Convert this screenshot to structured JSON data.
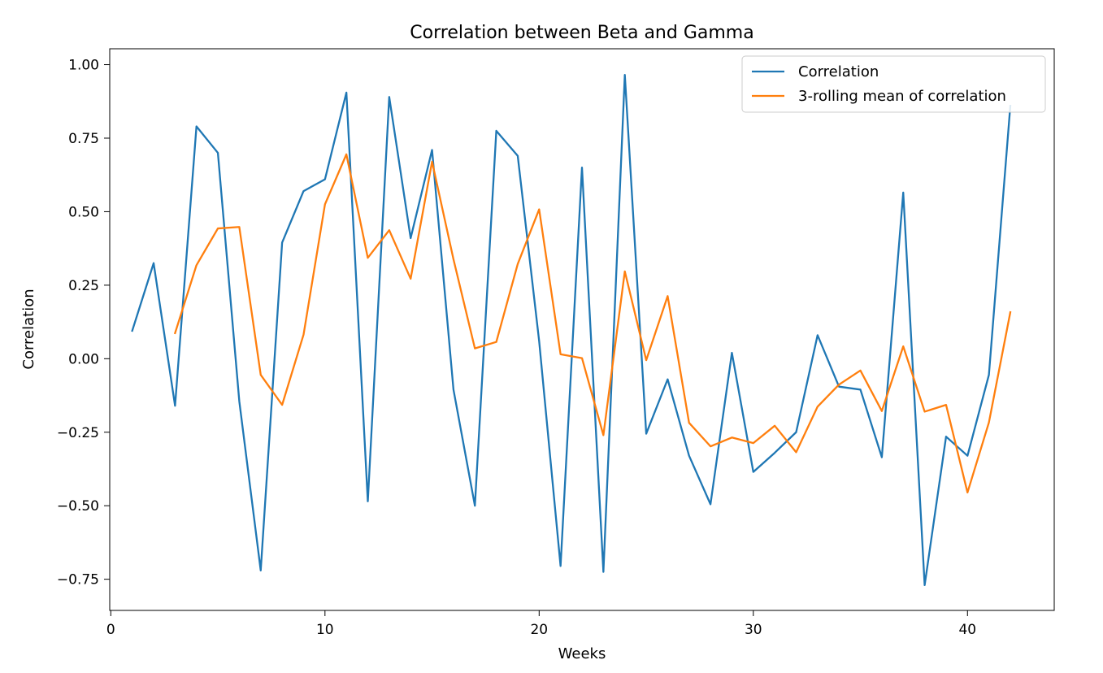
{
  "chart_data": {
    "type": "line",
    "title": "Correlation between Beta and Gamma",
    "xlabel": "Weeks",
    "ylabel": "Correlation",
    "xlim": [
      -0.05,
      44.05
    ],
    "ylim": [
      -0.856,
      1.054
    ],
    "xticks": [
      0,
      10,
      20,
      30,
      40
    ],
    "xtick_labels": [
      "0",
      "10",
      "20",
      "30",
      "40"
    ],
    "yticks": [
      -0.75,
      -0.5,
      -0.25,
      0.0,
      0.25,
      0.5,
      0.75,
      1.0
    ],
    "ytick_labels": [
      "−0.75",
      "−0.50",
      "−0.25",
      "0.00",
      "0.25",
      "0.50",
      "0.75",
      "1.00"
    ],
    "grid": false,
    "legend_position": "top-right",
    "series": [
      {
        "name": "Correlation",
        "color": "#1f77b4",
        "x": [
          1,
          2,
          3,
          4,
          5,
          6,
          7,
          8,
          9,
          10,
          11,
          12,
          13,
          14,
          15,
          16,
          17,
          18,
          19,
          20,
          21,
          22,
          23,
          24,
          25,
          26,
          27,
          28,
          29,
          30,
          31,
          32,
          33,
          34,
          35,
          36,
          37,
          38,
          39,
          40,
          41,
          42
        ],
        "y": [
          0.095,
          0.325,
          -0.16,
          0.79,
          0.7,
          -0.145,
          -0.72,
          0.395,
          0.57,
          0.61,
          0.905,
          -0.485,
          0.89,
          0.41,
          0.71,
          -0.105,
          -0.5,
          0.775,
          0.69,
          0.06,
          -0.705,
          0.65,
          -0.725,
          0.965,
          -0.255,
          -0.07,
          -0.33,
          -0.495,
          0.02,
          -0.385,
          -0.32,
          -0.25,
          0.08,
          -0.095,
          -0.105,
          -0.335,
          0.565,
          -0.77,
          -0.265,
          -0.33,
          -0.055,
          0.86
        ]
      },
      {
        "name": "3-rolling mean of correlation",
        "color": "#ff7f0e",
        "x": [
          3,
          4,
          5,
          6,
          7,
          8,
          9,
          10,
          11,
          12,
          13,
          14,
          15,
          16,
          17,
          18,
          19,
          20,
          21,
          22,
          23,
          24,
          25,
          26,
          27,
          28,
          29,
          30,
          31,
          32,
          33,
          34,
          35,
          36,
          37,
          38,
          39,
          40,
          41,
          42
        ],
        "y": [
          0.087,
          0.318,
          0.443,
          0.448,
          -0.055,
          -0.157,
          0.082,
          0.525,
          0.695,
          0.343,
          0.437,
          0.272,
          0.67,
          0.338,
          0.035,
          0.057,
          0.322,
          0.508,
          0.015,
          0.002,
          -0.26,
          0.297,
          -0.005,
          0.213,
          -0.218,
          -0.298,
          -0.268,
          -0.287,
          -0.228,
          -0.318,
          -0.163,
          -0.088,
          -0.04,
          -0.178,
          0.042,
          -0.18,
          -0.157,
          -0.455,
          -0.217,
          0.158
        ]
      }
    ]
  }
}
